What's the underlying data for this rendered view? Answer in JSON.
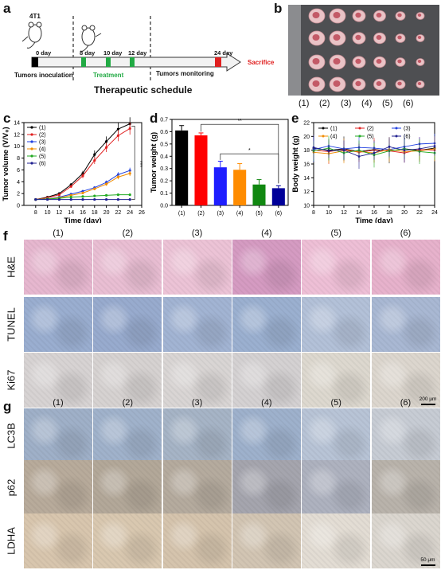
{
  "panels": {
    "a": "a",
    "b": "b",
    "c": "c",
    "d": "d",
    "e": "e",
    "f": "f",
    "g": "g"
  },
  "schedule": {
    "cell": "4T1",
    "day0": "0 day",
    "day8": "8 day",
    "day10": "10 day",
    "day12": "12 day",
    "day24": "24 day",
    "inoculation": "Tumors inoculation",
    "treatment": "Treatment",
    "monitoring": "Tumors monitoring",
    "sacrifice": "Sacrifice",
    "title": "Therapeutic schedule",
    "colors": {
      "inoculation": "#000000",
      "treatment": "#22aa44",
      "end": "#e02020",
      "sacrifice": "#e02020"
    }
  },
  "groups": [
    "(1)",
    "(2)",
    "(3)",
    "(4)",
    "(5)",
    "(6)"
  ],
  "photo": {
    "labels": [
      "(1)",
      "(2)",
      "(3)",
      "(4)",
      "(5)",
      "(6)"
    ]
  },
  "chart_data": [
    {
      "type": "line",
      "panel": "c",
      "xlabel": "Time (day)",
      "ylabel": "Tumor volume (V/V₀)",
      "xlim": [
        6,
        26
      ],
      "ylim": [
        0,
        14
      ],
      "xticks": [
        8,
        10,
        12,
        14,
        16,
        18,
        20,
        22,
        24,
        26
      ],
      "yticks": [
        0,
        2,
        4,
        6,
        8,
        10,
        12,
        14
      ],
      "x": [
        8,
        10,
        12,
        14,
        16,
        18,
        20,
        22,
        24
      ],
      "annotation": "***",
      "series": [
        {
          "name": "(1)",
          "color": "#000000",
          "values": [
            1.0,
            1.4,
            2.0,
            3.5,
            5.4,
            8.6,
            10.8,
            12.9,
            13.8
          ]
        },
        {
          "name": "(2)",
          "color": "#e02020",
          "values": [
            1.0,
            1.3,
            1.8,
            3.2,
            5.0,
            7.6,
            9.8,
            11.8,
            13.0
          ]
        },
        {
          "name": "(3)",
          "color": "#2040e0",
          "values": [
            1.0,
            1.1,
            1.4,
            1.9,
            2.4,
            3.0,
            3.9,
            5.2,
            5.9
          ]
        },
        {
          "name": "(4)",
          "color": "#f08c00",
          "values": [
            1.0,
            1.1,
            1.3,
            1.7,
            2.1,
            2.8,
            3.6,
            4.8,
            5.4
          ]
        },
        {
          "name": "(5)",
          "color": "#22aa22",
          "values": [
            1.0,
            1.1,
            1.2,
            1.4,
            1.5,
            1.6,
            1.7,
            1.8,
            1.8
          ]
        },
        {
          "name": "(6)",
          "color": "#202090",
          "values": [
            1.0,
            1.0,
            1.0,
            1.0,
            1.0,
            1.0,
            1.0,
            1.0,
            1.0
          ]
        }
      ]
    },
    {
      "type": "bar",
      "panel": "d",
      "ylabel": "Tumor weight (g)",
      "ylim": [
        0.0,
        0.7
      ],
      "yticks": [
        0.0,
        0.1,
        0.2,
        0.3,
        0.4,
        0.5,
        0.6,
        0.7
      ],
      "categories": [
        "(1)",
        "(2)",
        "(3)",
        "(4)",
        "(5)",
        "(6)"
      ],
      "values": [
        0.61,
        0.57,
        0.31,
        0.29,
        0.17,
        0.14
      ],
      "errors": [
        0.04,
        0.02,
        0.05,
        0.05,
        0.04,
        0.02
      ],
      "colors": [
        "#000000",
        "#ff0000",
        "#1e1eff",
        "#ff8c00",
        "#118811",
        "#000099"
      ],
      "significance": [
        "**",
        "*"
      ]
    },
    {
      "type": "line",
      "panel": "e",
      "xlabel": "Time (day)",
      "ylabel": "Body weight (g)",
      "xlim": [
        8,
        24
      ],
      "ylim": [
        10,
        22
      ],
      "xticks": [
        8,
        10,
        12,
        14,
        16,
        18,
        20,
        22,
        24
      ],
      "yticks": [
        10,
        12,
        14,
        16,
        18,
        20,
        22
      ],
      "x": [
        8,
        10,
        12,
        14,
        16,
        18,
        20,
        22,
        24
      ],
      "series": [
        {
          "name": "(1)",
          "color": "#000000",
          "values": [
            18.3,
            18.0,
            18.2,
            17.8,
            18.1,
            17.9,
            18.2,
            18.0,
            18.3
          ]
        },
        {
          "name": "(2)",
          "color": "#e02020",
          "values": [
            18.0,
            17.8,
            18.1,
            17.7,
            18.0,
            17.9,
            17.6,
            18.1,
            18.0
          ]
        },
        {
          "name": "(3)",
          "color": "#2040e0",
          "values": [
            18.1,
            18.6,
            18.2,
            18.4,
            18.3,
            18.1,
            18.5,
            18.9,
            19.0
          ]
        },
        {
          "name": "(4)",
          "color": "#f08c00",
          "values": [
            17.7,
            17.5,
            17.9,
            17.8,
            17.6,
            18.1,
            17.8,
            17.9,
            18.2
          ]
        },
        {
          "name": "(5)",
          "color": "#22aa22",
          "values": [
            17.9,
            18.3,
            17.6,
            18.0,
            17.3,
            17.9,
            18.2,
            17.8,
            17.6
          ]
        },
        {
          "name": "(6)",
          "color": "#202090",
          "values": [
            18.4,
            17.9,
            18.0,
            17.1,
            17.6,
            18.5,
            18.0,
            18.2,
            18.6
          ]
        }
      ]
    }
  ],
  "histology_f": {
    "rows": [
      "H&E",
      "TUNEL",
      "Ki67"
    ],
    "cols": [
      "(1)",
      "(2)",
      "(3)",
      "(4)",
      "(5)",
      "(6)"
    ],
    "scale_bar": "200 μm"
  },
  "histology_g": {
    "rows": [
      "LC3B",
      "p62",
      "LDHA"
    ],
    "cols": [
      "(1)",
      "(2)",
      "(3)",
      "(4)",
      "(5)",
      "(6)"
    ],
    "scale_bar": "50 μm"
  }
}
